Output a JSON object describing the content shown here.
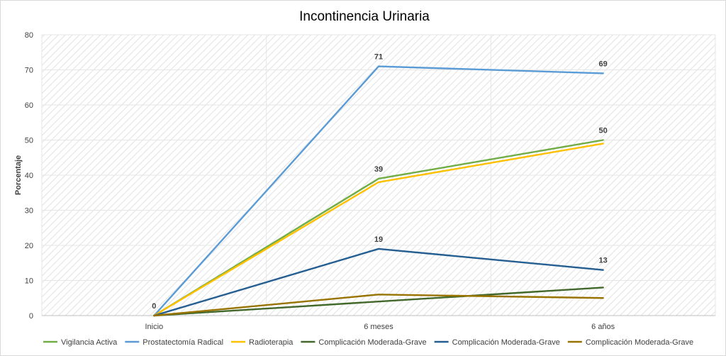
{
  "chart_data": {
    "type": "line",
    "title": "Incontinencia Urinaria",
    "xlabel": "",
    "ylabel": "Porcentaje",
    "categories": [
      "Inicio",
      "6 meses",
      "6 años"
    ],
    "ylim": [
      0,
      80
    ],
    "yticks": [
      0,
      10,
      20,
      30,
      40,
      50,
      60,
      70,
      80
    ],
    "grid": true,
    "legend_position": "bottom",
    "series": [
      {
        "name": "Vigilancia Activa",
        "color": "#70ad47",
        "values": [
          0,
          39,
          50
        ]
      },
      {
        "name": "Prostatectomía Radical",
        "color": "#5b9bd5",
        "values": [
          0,
          71,
          69
        ]
      },
      {
        "name": "Radioterapia",
        "color": "#ffc000",
        "values": [
          0,
          38,
          49
        ]
      },
      {
        "name": "Complicación Moderada-Grave",
        "color": "#43682b",
        "values": [
          0,
          4,
          8
        ]
      },
      {
        "name": "Complicación Moderada-Grave",
        "color": "#255e91",
        "values": [
          0,
          19,
          13
        ]
      },
      {
        "name": "Complicación Moderada-Grave",
        "color": "#997300",
        "values": [
          0,
          6,
          5
        ]
      }
    ],
    "data_labels": [
      {
        "category": "Inicio",
        "value": 0,
        "text": "0"
      },
      {
        "category": "6 meses",
        "value": 71,
        "text": "71"
      },
      {
        "category": "6 años",
        "value": 69,
        "text": "69"
      },
      {
        "category": "6 meses",
        "value": 39,
        "text": "39"
      },
      {
        "category": "6 años",
        "value": 50,
        "text": "50"
      },
      {
        "category": "6 meses",
        "value": 19,
        "text": "19"
      },
      {
        "category": "6 años",
        "value": 13,
        "text": "13"
      }
    ]
  }
}
